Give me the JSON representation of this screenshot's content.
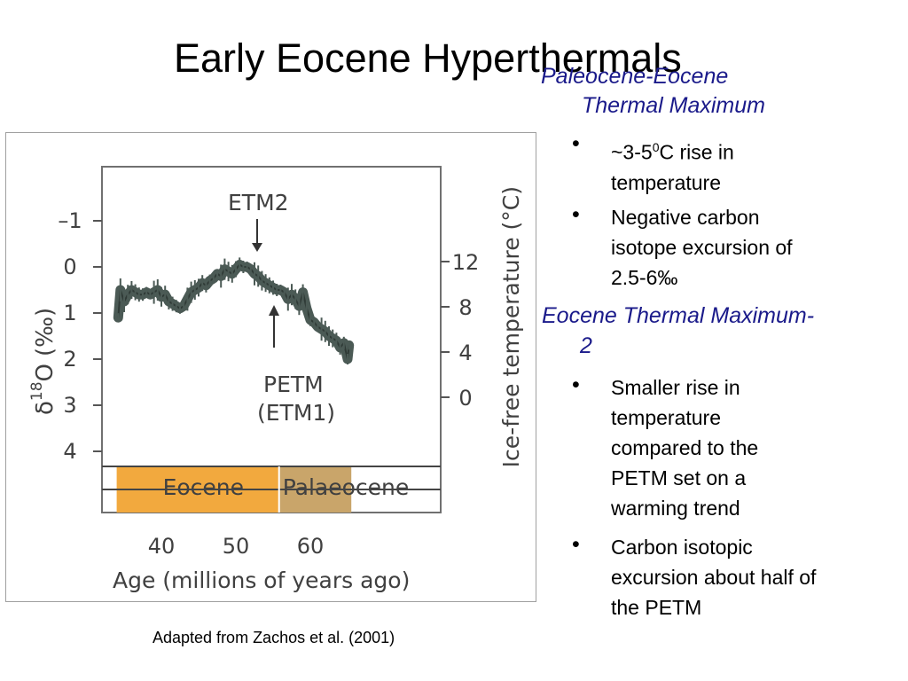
{
  "slide": {
    "title": "Early Eocene Hyperthermals",
    "caption": "Adapted from Zachos et al. (2001)"
  },
  "sections": [
    {
      "heading_line1": "Paleocene-Eocene",
      "heading_line2": "Thermal Maximum",
      "bullets": [
        {
          "line1": "~3-5",
          "sup": "0",
          "line1_rest": "C rise in",
          "line2": "temperature"
        },
        {
          "lines": [
            "Negative carbon",
            "isotope excursion of",
            "2.5-6‰"
          ]
        }
      ]
    },
    {
      "heading_line1": "Eocene Thermal Maximum-",
      "heading_line2": "2",
      "bullets": [
        {
          "lines": [
            "Smaller rise in",
            "temperature",
            "compared to the",
            "PETM set on a",
            "warming trend"
          ]
        },
        {
          "lines": [
            "Carbon isotopic",
            "excursion about half of",
            "the PETM"
          ]
        }
      ]
    }
  ],
  "bullet_char": "•",
  "chart_data": {
    "type": "line",
    "xlabel": "Age (millions of years ago)",
    "ylabel_left": "δ18O (‰)",
    "ylabel_left_parts": {
      "delta": "δ",
      "sup": "18",
      "o": "O",
      "unit": "(‰)"
    },
    "ylabel_right": "Ice-free temperature (°C)",
    "x_ticks": [
      "40",
      "50",
      "60"
    ],
    "x_tick_values": [
      40,
      50,
      60
    ],
    "y_left_ticks": [
      "–1",
      "0",
      "1",
      "2",
      "3",
      "4"
    ],
    "y_left_tick_values": [
      -1,
      0,
      1,
      2,
      3,
      4
    ],
    "y_right_ticks": [
      "12",
      "8",
      "4",
      "0"
    ],
    "y_right_tick_values": [
      12,
      8,
      4,
      0
    ],
    "ylim_left": [
      -2,
      5
    ],
    "xlim": [
      32,
      70
    ],
    "series": [
      {
        "x": [
          65.2,
          65.0,
          64.5,
          64.0,
          63.5,
          63.0,
          62.5,
          62.0,
          61.5,
          61.0,
          60.5,
          60.0,
          59.5,
          59.0,
          58.5,
          58.0,
          57.5,
          57.0,
          56.5,
          56.0,
          55.5,
          55.0,
          54.5,
          54.0,
          53.5,
          53.0,
          52.5,
          52.0,
          51.5,
          51.0,
          50.5,
          50.0,
          49.5,
          49.0,
          48.5,
          48.0,
          47.5,
          47.0,
          46.5,
          46.0,
          45.5,
          45.0,
          44.5,
          44.0,
          43.5,
          43.0,
          42.5,
          42.0,
          41.5,
          41.0,
          40.5,
          40.0,
          39.5,
          39.0,
          38.5,
          38.0,
          37.5,
          37.0,
          36.5,
          36.0,
          35.5,
          35.0,
          34.5,
          34.2
        ],
        "y": [
          1.7,
          2.0,
          1.65,
          1.75,
          1.6,
          1.55,
          1.5,
          1.4,
          1.35,
          1.3,
          1.2,
          1.15,
          0.9,
          0.55,
          0.85,
          0.7,
          0.6,
          0.7,
          0.55,
          0.5,
          0.5,
          0.45,
          0.4,
          0.35,
          0.3,
          0.2,
          0.15,
          0.05,
          0.0,
          0.0,
          -0.05,
          0.05,
          0.15,
          0.1,
          0.05,
          0.2,
          0.15,
          0.25,
          0.3,
          0.4,
          0.35,
          0.45,
          0.5,
          0.55,
          0.7,
          0.85,
          0.9,
          0.85,
          0.8,
          0.75,
          0.6,
          0.65,
          0.5,
          0.55,
          0.6,
          0.55,
          0.6,
          0.6,
          0.55,
          0.5,
          0.6,
          0.75,
          0.5,
          1.1
        ]
      }
    ],
    "annotations": [
      {
        "text": "ETM2",
        "x": 53.5
      },
      {
        "text_line1": "PETM",
        "text_line2": "(ETM1)",
        "x": 55.5
      }
    ],
    "epochs": [
      {
        "name": "Eocene",
        "from": 34,
        "to": 55.8,
        "color": "#f2a93e"
      },
      {
        "name": "Palaeocene",
        "from": 55.8,
        "to": 65.5,
        "color": "#c9a56a"
      }
    ],
    "line_color": "#4b5a55"
  }
}
